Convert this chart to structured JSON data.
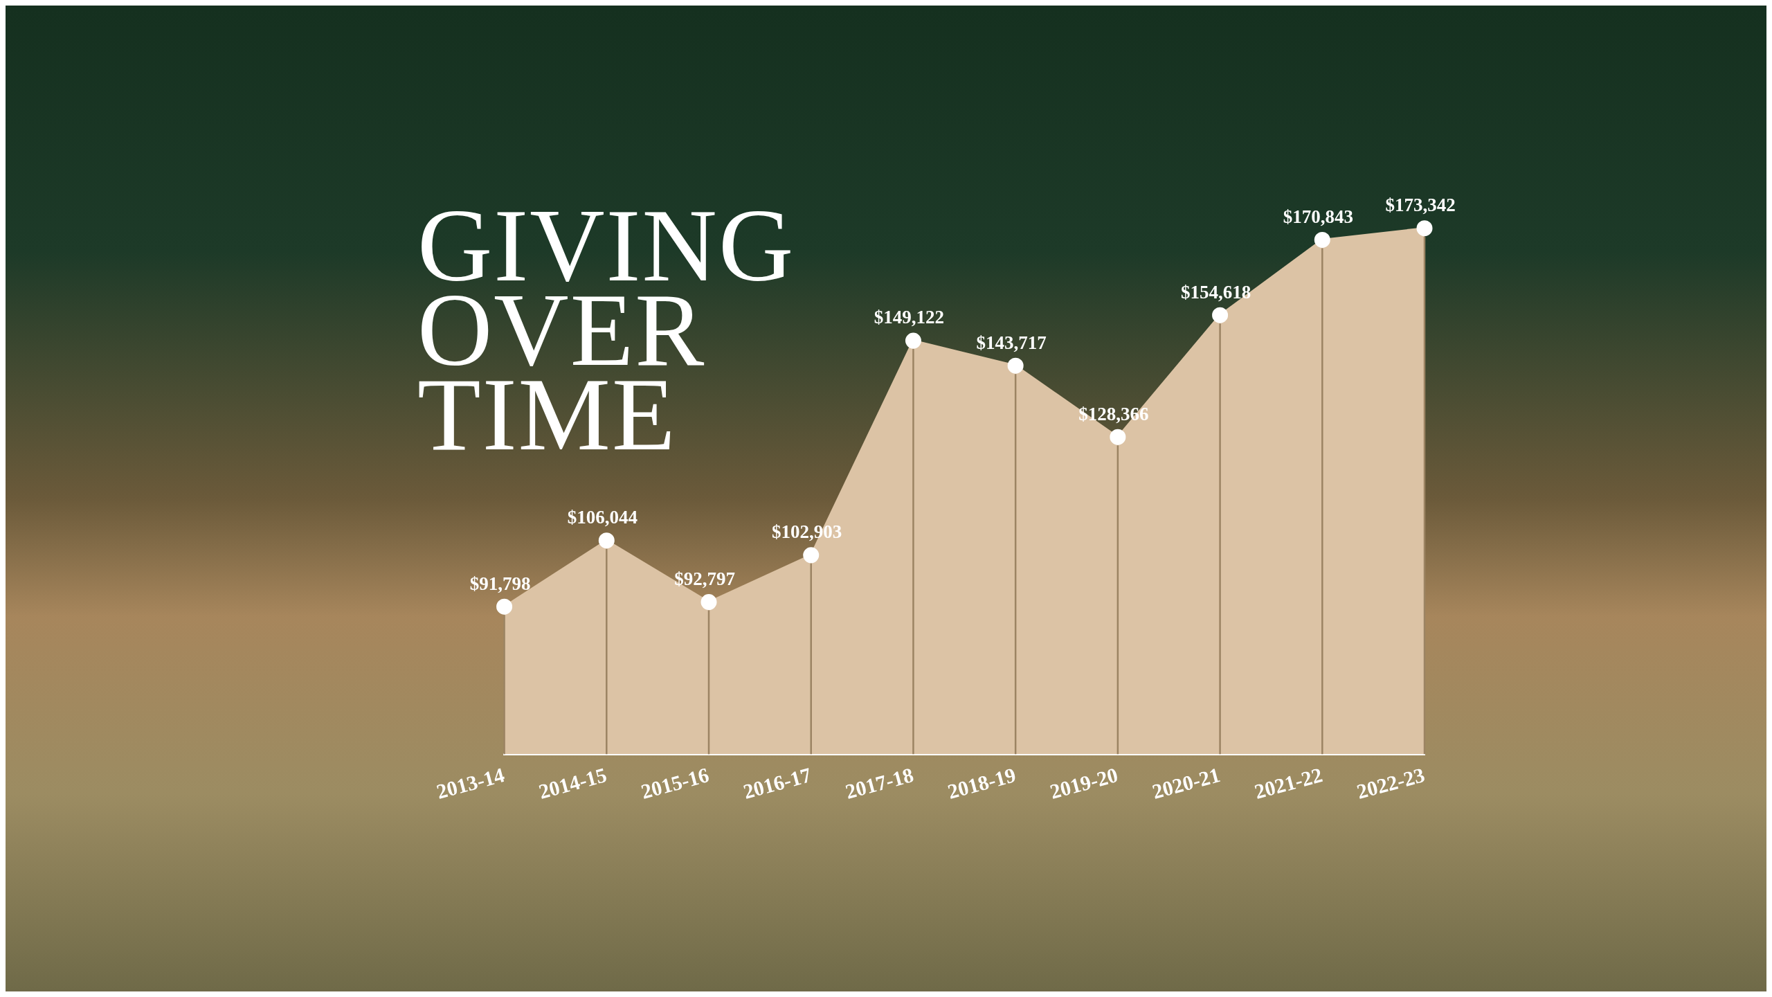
{
  "chart_data": {
    "type": "area",
    "title": "GIVING OVER TIME",
    "categories": [
      "2013-14",
      "2014-15",
      "2015-16",
      "2016-17",
      "2017-18",
      "2018-19",
      "2019-20",
      "2020-21",
      "2021-22",
      "2022-23"
    ],
    "series": [
      {
        "color": "#dcc3a5",
        "values": [
          91798,
          106044,
          92797,
          102903,
          149122,
          143717,
          128366,
          154618,
          170843,
          173342
        ],
        "value_labels": [
          "$91,798",
          "$106,044",
          "$92,797",
          "$102,903",
          "$149,122",
          "$143,717",
          "$128,366",
          "$154,618",
          "$170,843",
          "$173,342"
        ]
      }
    ],
    "tick_labels": "x",
    "legend": false,
    "marker": "circle"
  }
}
